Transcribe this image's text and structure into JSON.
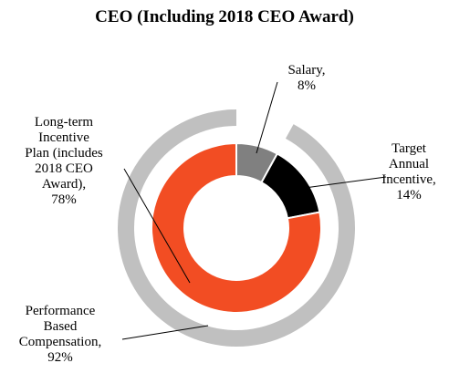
{
  "chart_data": {
    "type": "pie",
    "title": "CEO (Including 2018 CEO Award)",
    "inner_ring": {
      "slices": [
        {
          "label_lines": [
            "Salary,",
            "8%"
          ],
          "value": 8,
          "color": "#808080"
        },
        {
          "label_lines": [
            "Target",
            "Annual",
            "Incentive,",
            "14%"
          ],
          "value": 14,
          "color": "#000000"
        },
        {
          "label_lines": [
            "Long-term",
            "Incentive",
            "Plan (includes",
            "2018 CEO",
            "Award),",
            "78%"
          ],
          "value": 78,
          "color": "#f24d23"
        }
      ]
    },
    "outer_ring": {
      "label_lines": [
        "Performance",
        "Based",
        "Compensation,",
        "92%"
      ],
      "value": 92,
      "color": "#c0c0c0"
    }
  }
}
